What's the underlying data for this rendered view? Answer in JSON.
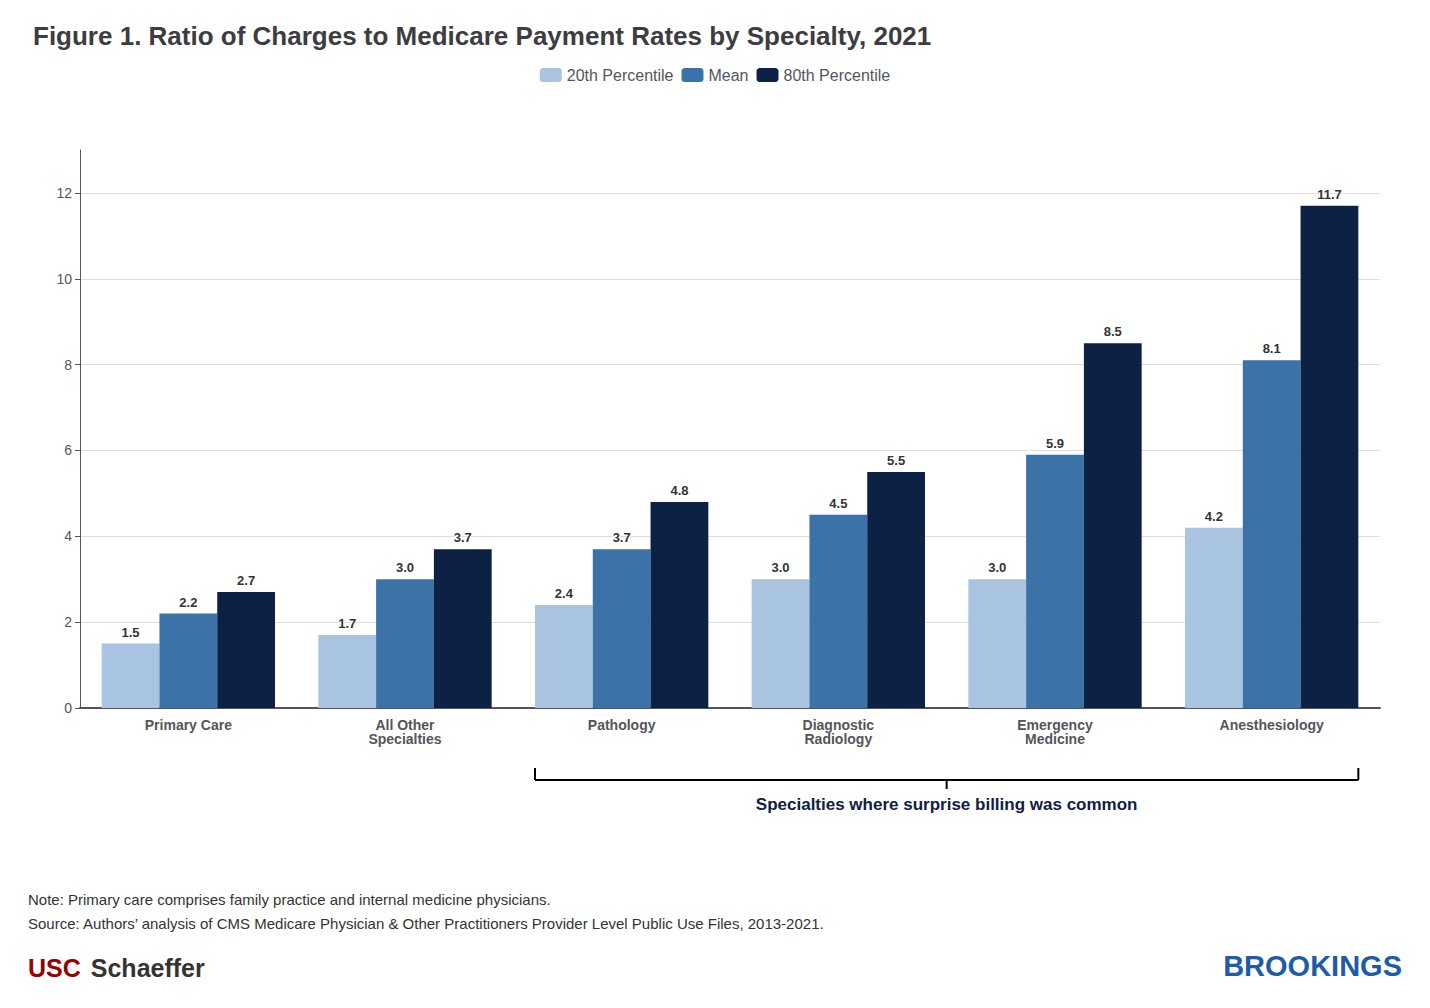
{
  "chart_data": {
    "type": "bar",
    "title": "Figure 1. Ratio of Charges to Medicare Payment Rates by Specialty, 2021",
    "categories": [
      "Primary Care",
      "All Other\nSpecialties",
      "Pathology",
      "Diagnostic\nRadiology",
      "Emergency\nMedicine",
      "Anesthesiology"
    ],
    "series": [
      {
        "name": "20th Percentile",
        "color": "#a8c4e0",
        "values": [
          1.5,
          1.7,
          2.4,
          3.0,
          3.0,
          4.2
        ],
        "value_labels": [
          "1.5",
          "1.7",
          "2.4",
          "3.0",
          "3.0",
          "4.2"
        ]
      },
      {
        "name": "Mean",
        "color": "#3b72a8",
        "values": [
          2.2,
          3.0,
          3.7,
          4.5,
          5.9,
          8.1
        ],
        "value_labels": [
          "2.2",
          "3.0",
          "3.7",
          "4.5",
          "5.9",
          "8.1"
        ]
      },
      {
        "name": "80th Percentile",
        "color": "#0d2145",
        "values": [
          2.7,
          3.7,
          4.8,
          5.5,
          8.5,
          11.7
        ],
        "value_labels": [
          "2.7",
          "3.7",
          "4.8",
          "5.5",
          "8.5",
          "11.7"
        ]
      }
    ],
    "ylim": [
      0,
      13
    ],
    "yticks": [
      0,
      2,
      4,
      6,
      8,
      10,
      12
    ],
    "grid": true,
    "legend": "top",
    "data_labels": true,
    "annotation": {
      "text": "Specialties where surprise billing was common",
      "span": [
        "Pathology",
        "Anesthesiology"
      ]
    },
    "notes": [
      "Note: Primary care comprises family practice and internal medicine physicians.",
      "Source: Authors’ analysis of CMS Medicare Physician & Other Practitioners Provider Level Public Use Files, 2013-2021."
    ],
    "logos": [
      {
        "text": "USC",
        "color": "#990000"
      },
      {
        "text": "Schaeffer",
        "color": "#333333"
      },
      {
        "text": "BROOKINGS",
        "color": "#1e5ca8"
      }
    ]
  }
}
